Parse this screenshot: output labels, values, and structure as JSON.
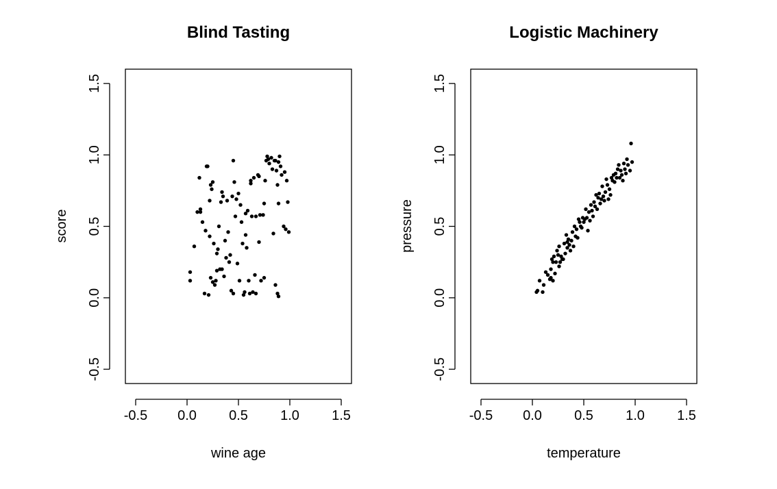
{
  "chart_data": [
    {
      "type": "scatter",
      "title": "Blind Tasting",
      "xlabel": "wine age",
      "ylabel": "score",
      "xlim": [
        -0.6,
        1.6
      ],
      "ylim": [
        -0.6,
        1.6
      ],
      "xticks": [
        -0.5,
        0.0,
        0.5,
        1.0,
        1.5
      ],
      "xtick_labels": [
        "-0.5",
        "0.0",
        "0.5",
        "1.0",
        "1.5"
      ],
      "yticks": [
        -0.5,
        0.0,
        0.5,
        1.0,
        1.5
      ],
      "ytick_labels": [
        "-0.5",
        "0.0",
        "0.5",
        "1.0",
        "1.5"
      ],
      "grid": false,
      "points": [
        [
          0.03,
          0.18
        ],
        [
          0.03,
          0.12
        ],
        [
          0.07,
          0.36
        ],
        [
          0.1,
          0.6
        ],
        [
          0.12,
          0.84
        ],
        [
          0.13,
          0.62
        ],
        [
          0.13,
          0.6
        ],
        [
          0.15,
          0.53
        ],
        [
          0.17,
          0.03
        ],
        [
          0.18,
          0.47
        ],
        [
          0.19,
          0.92
        ],
        [
          0.2,
          0.92
        ],
        [
          0.21,
          0.02
        ],
        [
          0.22,
          0.43
        ],
        [
          0.22,
          0.68
        ],
        [
          0.23,
          0.79
        ],
        [
          0.23,
          0.14
        ],
        [
          0.24,
          0.76
        ],
        [
          0.25,
          0.81
        ],
        [
          0.25,
          0.11
        ],
        [
          0.26,
          0.38
        ],
        [
          0.27,
          0.09
        ],
        [
          0.28,
          0.12
        ],
        [
          0.29,
          0.19
        ],
        [
          0.29,
          0.31
        ],
        [
          0.3,
          0.34
        ],
        [
          0.31,
          0.5
        ],
        [
          0.32,
          0.2
        ],
        [
          0.33,
          0.67
        ],
        [
          0.34,
          0.74
        ],
        [
          0.34,
          0.2
        ],
        [
          0.35,
          0.71
        ],
        [
          0.36,
          0.15
        ],
        [
          0.37,
          0.4
        ],
        [
          0.38,
          0.28
        ],
        [
          0.39,
          0.68
        ],
        [
          0.4,
          0.46
        ],
        [
          0.41,
          0.25
        ],
        [
          0.42,
          0.3
        ],
        [
          0.43,
          0.05
        ],
        [
          0.44,
          0.71
        ],
        [
          0.45,
          0.96
        ],
        [
          0.45,
          0.03
        ],
        [
          0.46,
          0.81
        ],
        [
          0.47,
          0.57
        ],
        [
          0.48,
          0.69
        ],
        [
          0.49,
          0.24
        ],
        [
          0.5,
          0.73
        ],
        [
          0.51,
          0.12
        ],
        [
          0.52,
          0.65
        ],
        [
          0.53,
          0.53
        ],
        [
          0.54,
          0.38
        ],
        [
          0.55,
          0.02
        ],
        [
          0.56,
          0.04
        ],
        [
          0.57,
          0.59
        ],
        [
          0.57,
          0.44
        ],
        [
          0.58,
          0.35
        ],
        [
          0.59,
          0.61
        ],
        [
          0.6,
          0.12
        ],
        [
          0.61,
          0.03
        ],
        [
          0.62,
          0.82
        ],
        [
          0.62,
          0.8
        ],
        [
          0.63,
          0.57
        ],
        [
          0.64,
          0.04
        ],
        [
          0.65,
          0.84
        ],
        [
          0.66,
          0.16
        ],
        [
          0.67,
          0.57
        ],
        [
          0.67,
          0.03
        ],
        [
          0.69,
          0.86
        ],
        [
          0.7,
          0.85
        ],
        [
          0.7,
          0.39
        ],
        [
          0.71,
          0.58
        ],
        [
          0.72,
          0.12
        ],
        [
          0.74,
          0.58
        ],
        [
          0.75,
          0.66
        ],
        [
          0.75,
          0.14
        ],
        [
          0.76,
          0.82
        ],
        [
          0.77,
          0.96
        ],
        [
          0.78,
          0.99
        ],
        [
          0.79,
          0.97
        ],
        [
          0.8,
          0.94
        ],
        [
          0.82,
          0.98
        ],
        [
          0.83,
          0.9
        ],
        [
          0.84,
          0.45
        ],
        [
          0.85,
          0.96
        ],
        [
          0.86,
          0.96
        ],
        [
          0.86,
          0.09
        ],
        [
          0.87,
          0.89
        ],
        [
          0.88,
          0.79
        ],
        [
          0.88,
          0.03
        ],
        [
          0.89,
          0.95
        ],
        [
          0.89,
          0.66
        ],
        [
          0.89,
          0.01
        ],
        [
          0.9,
          0.99
        ],
        [
          0.91,
          0.92
        ],
        [
          0.92,
          0.86
        ],
        [
          0.94,
          0.5
        ],
        [
          0.95,
          0.88
        ],
        [
          0.96,
          0.48
        ],
        [
          0.97,
          0.82
        ],
        [
          0.98,
          0.67
        ],
        [
          0.99,
          0.46
        ]
      ]
    },
    {
      "type": "scatter",
      "title": "Logistic Machinery",
      "xlabel": "temperature",
      "ylabel": "pressure",
      "xlim": [
        -0.6,
        1.6
      ],
      "ylim": [
        -0.6,
        1.6
      ],
      "xticks": [
        -0.5,
        0.0,
        0.5,
        1.0,
        1.5
      ],
      "xtick_labels": [
        "-0.5",
        "0.0",
        "0.5",
        "1.0",
        "1.5"
      ],
      "yticks": [
        -0.5,
        0.0,
        0.5,
        1.0,
        1.5
      ],
      "ytick_labels": [
        "-0.5",
        "0.0",
        "0.5",
        "1.0",
        "1.5"
      ],
      "grid": false,
      "points": [
        [
          0.04,
          0.04
        ],
        [
          0.05,
          0.05
        ],
        [
          0.07,
          0.12
        ],
        [
          0.1,
          0.04
        ],
        [
          0.11,
          0.09
        ],
        [
          0.13,
          0.18
        ],
        [
          0.15,
          0.16
        ],
        [
          0.17,
          0.13
        ],
        [
          0.18,
          0.2
        ],
        [
          0.18,
          0.14
        ],
        [
          0.19,
          0.27
        ],
        [
          0.2,
          0.12
        ],
        [
          0.2,
          0.25
        ],
        [
          0.21,
          0.29
        ],
        [
          0.22,
          0.17
        ],
        [
          0.23,
          0.25
        ],
        [
          0.24,
          0.33
        ],
        [
          0.25,
          0.3
        ],
        [
          0.26,
          0.22
        ],
        [
          0.26,
          0.36
        ],
        [
          0.27,
          0.25
        ],
        [
          0.28,
          0.29
        ],
        [
          0.29,
          0.27
        ],
        [
          0.3,
          0.27
        ],
        [
          0.31,
          0.38
        ],
        [
          0.32,
          0.31
        ],
        [
          0.33,
          0.44
        ],
        [
          0.34,
          0.39
        ],
        [
          0.34,
          0.35
        ],
        [
          0.35,
          0.41
        ],
        [
          0.36,
          0.37
        ],
        [
          0.37,
          0.33
        ],
        [
          0.38,
          0.4
        ],
        [
          0.39,
          0.46
        ],
        [
          0.4,
          0.36
        ],
        [
          0.41,
          0.5
        ],
        [
          0.42,
          0.43
        ],
        [
          0.43,
          0.48
        ],
        [
          0.44,
          0.42
        ],
        [
          0.45,
          0.55
        ],
        [
          0.46,
          0.53
        ],
        [
          0.47,
          0.5
        ],
        [
          0.48,
          0.49
        ],
        [
          0.49,
          0.56
        ],
        [
          0.5,
          0.53
        ],
        [
          0.51,
          0.55
        ],
        [
          0.52,
          0.62
        ],
        [
          0.53,
          0.56
        ],
        [
          0.54,
          0.47
        ],
        [
          0.55,
          0.6
        ],
        [
          0.56,
          0.54
        ],
        [
          0.57,
          0.65
        ],
        [
          0.58,
          0.61
        ],
        [
          0.59,
          0.57
        ],
        [
          0.6,
          0.67
        ],
        [
          0.61,
          0.64
        ],
        [
          0.62,
          0.72
        ],
        [
          0.63,
          0.62
        ],
        [
          0.64,
          0.7
        ],
        [
          0.65,
          0.73
        ],
        [
          0.66,
          0.66
        ],
        [
          0.67,
          0.69
        ],
        [
          0.68,
          0.78
        ],
        [
          0.69,
          0.71
        ],
        [
          0.7,
          0.68
        ],
        [
          0.71,
          0.74
        ],
        [
          0.72,
          0.83
        ],
        [
          0.73,
          0.79
        ],
        [
          0.74,
          0.69
        ],
        [
          0.75,
          0.76
        ],
        [
          0.76,
          0.72
        ],
        [
          0.77,
          0.84
        ],
        [
          0.78,
          0.82
        ],
        [
          0.79,
          0.86
        ],
        [
          0.8,
          0.81
        ],
        [
          0.81,
          0.87
        ],
        [
          0.82,
          0.84
        ],
        [
          0.83,
          0.9
        ],
        [
          0.84,
          0.93
        ],
        [
          0.85,
          0.84
        ],
        [
          0.86,
          0.89
        ],
        [
          0.87,
          0.86
        ],
        [
          0.88,
          0.82
        ],
        [
          0.89,
          0.94
        ],
        [
          0.9,
          0.9
        ],
        [
          0.91,
          0.87
        ],
        [
          0.92,
          0.97
        ],
        [
          0.93,
          0.93
        ],
        [
          0.95,
          0.89
        ],
        [
          0.96,
          1.08
        ],
        [
          0.97,
          0.95
        ]
      ]
    }
  ]
}
